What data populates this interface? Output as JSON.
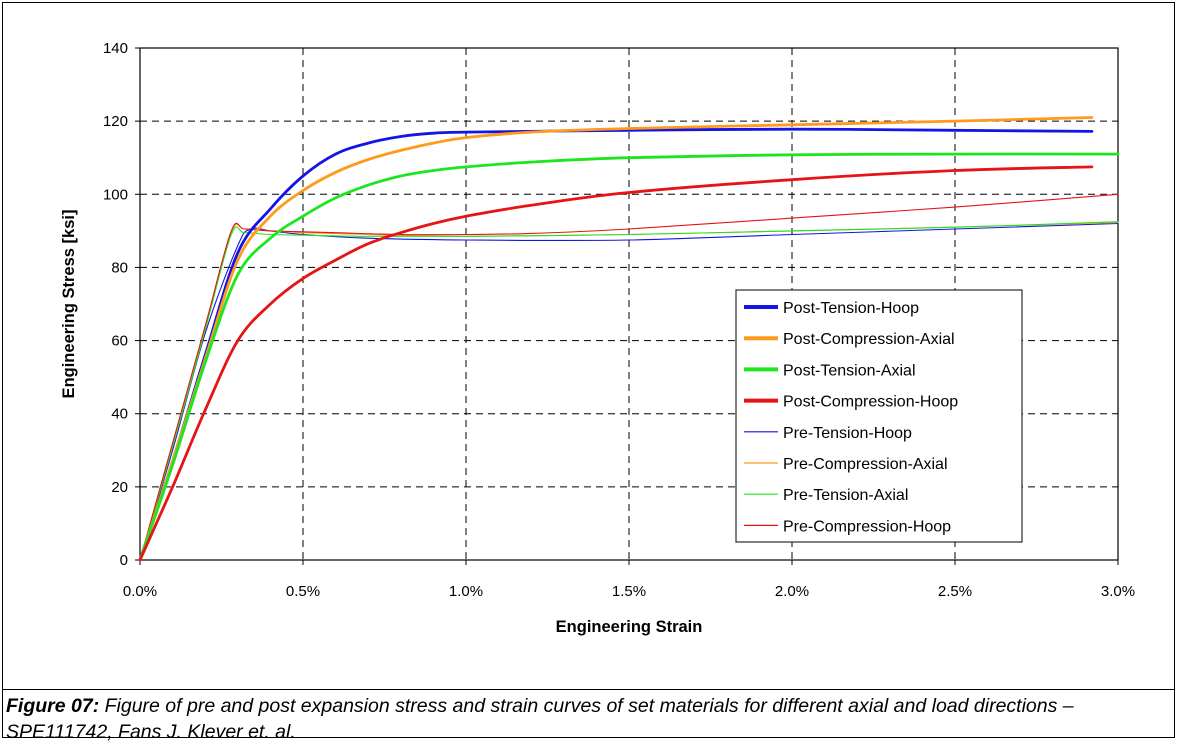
{
  "caption": {
    "label": "Figure 07:",
    "text": " Figure of pre and post expansion stress and strain curves of set materials for different axial and load directions – SPE111742, Fans J. Klever et. al."
  },
  "chart_data": {
    "type": "line",
    "xlabel": "Engineering Strain",
    "ylabel": "Engineering Stress  [ksi]",
    "x_unit": "%",
    "xlim": [
      0.0,
      3.0
    ],
    "ylim": [
      0,
      140
    ],
    "x_ticks": [
      "0.0%",
      "0.5%",
      "1.0%",
      "1.5%",
      "2.0%",
      "2.5%",
      "3.0%"
    ],
    "x_tick_values": [
      0.0,
      0.5,
      1.0,
      1.5,
      2.0,
      2.5,
      3.0
    ],
    "y_ticks": [
      "0",
      "20",
      "40",
      "60",
      "80",
      "100",
      "120",
      "140"
    ],
    "y_tick_values": [
      0,
      20,
      40,
      60,
      80,
      100,
      120,
      140
    ],
    "grid": "dashed",
    "legend_placement": "lower-right",
    "series": [
      {
        "name": "Post-Tension-Hoop",
        "color": "#1414e6",
        "weight": "bold",
        "points": [
          [
            0,
            0
          ],
          [
            0.1,
            27
          ],
          [
            0.2,
            56
          ],
          [
            0.3,
            84
          ],
          [
            0.4,
            96
          ],
          [
            0.5,
            105
          ],
          [
            0.6,
            111
          ],
          [
            0.7,
            114
          ],
          [
            0.8,
            115.8
          ],
          [
            0.9,
            116.7
          ],
          [
            1.0,
            117
          ],
          [
            1.5,
            117.5
          ],
          [
            2.0,
            117.8
          ],
          [
            2.5,
            117.5
          ],
          [
            2.92,
            117.2
          ]
        ]
      },
      {
        "name": "Post-Compression-Axial",
        "color": "#ff9a1a",
        "weight": "bold",
        "points": [
          [
            0,
            0
          ],
          [
            0.1,
            27
          ],
          [
            0.2,
            55
          ],
          [
            0.3,
            82
          ],
          [
            0.4,
            94
          ],
          [
            0.5,
            101
          ],
          [
            0.6,
            106
          ],
          [
            0.7,
            109.5
          ],
          [
            0.8,
            112
          ],
          [
            0.9,
            114
          ],
          [
            1.0,
            115.5
          ],
          [
            1.2,
            117
          ],
          [
            1.5,
            118
          ],
          [
            2.0,
            119
          ],
          [
            2.5,
            120
          ],
          [
            2.92,
            121
          ]
        ]
      },
      {
        "name": "Post-Tension-Axial",
        "color": "#1ee61e",
        "weight": "bold",
        "points": [
          [
            0,
            0
          ],
          [
            0.1,
            26
          ],
          [
            0.2,
            54
          ],
          [
            0.3,
            78
          ],
          [
            0.4,
            88
          ],
          [
            0.5,
            94
          ],
          [
            0.6,
            99
          ],
          [
            0.7,
            102.5
          ],
          [
            0.8,
            105
          ],
          [
            0.9,
            106.5
          ],
          [
            1.0,
            107.5
          ],
          [
            1.2,
            108.8
          ],
          [
            1.5,
            110
          ],
          [
            2.0,
            110.8
          ],
          [
            2.5,
            111
          ],
          [
            3.0,
            111
          ]
        ]
      },
      {
        "name": "Post-Compression-Hoop",
        "color": "#e61414",
        "weight": "bold",
        "points": [
          [
            0,
            0
          ],
          [
            0.1,
            20
          ],
          [
            0.2,
            41
          ],
          [
            0.3,
            60
          ],
          [
            0.4,
            70
          ],
          [
            0.5,
            77
          ],
          [
            0.6,
            82
          ],
          [
            0.7,
            86.5
          ],
          [
            0.8,
            89.5
          ],
          [
            0.9,
            92
          ],
          [
            1.0,
            94
          ],
          [
            1.2,
            97
          ],
          [
            1.5,
            100.5
          ],
          [
            2.0,
            104
          ],
          [
            2.5,
            106.5
          ],
          [
            2.92,
            107.5
          ]
        ]
      },
      {
        "name": "Pre-Tension-Hoop",
        "color": "#1414e6",
        "weight": "thin",
        "points": [
          [
            0,
            0
          ],
          [
            0.1,
            30
          ],
          [
            0.2,
            62
          ],
          [
            0.3,
            86
          ],
          [
            0.34,
            90.5
          ],
          [
            0.4,
            90
          ],
          [
            0.5,
            89
          ],
          [
            0.7,
            88
          ],
          [
            1.0,
            87.5
          ],
          [
            1.5,
            87.5
          ],
          [
            2.0,
            89
          ],
          [
            2.5,
            90.5
          ],
          [
            3.0,
            92
          ]
        ]
      },
      {
        "name": "Pre-Compression-Axial",
        "color": "#ff9a1a",
        "weight": "thin",
        "points": [
          [
            0,
            0
          ],
          [
            0.1,
            31
          ],
          [
            0.2,
            63
          ],
          [
            0.28,
            89.5
          ],
          [
            0.32,
            90.5
          ],
          [
            0.4,
            90
          ],
          [
            0.5,
            89.5
          ],
          [
            0.7,
            89
          ],
          [
            1.0,
            88.5
          ],
          [
            1.5,
            89
          ],
          [
            2.0,
            90
          ],
          [
            2.5,
            91
          ],
          [
            3.0,
            92.3
          ]
        ]
      },
      {
        "name": "Pre-Tension-Axial",
        "color": "#1ee61e",
        "weight": "thin",
        "points": [
          [
            0,
            0
          ],
          [
            0.1,
            31
          ],
          [
            0.2,
            63
          ],
          [
            0.28,
            89
          ],
          [
            0.32,
            89.5
          ],
          [
            0.4,
            89
          ],
          [
            0.5,
            88.8
          ],
          [
            0.7,
            88.5
          ],
          [
            1.0,
            88.5
          ],
          [
            1.5,
            89
          ],
          [
            2.0,
            90
          ],
          [
            2.5,
            91
          ],
          [
            3.0,
            92.5
          ]
        ]
      },
      {
        "name": "Pre-Compression-Hoop",
        "color": "#e61414",
        "weight": "thin",
        "points": [
          [
            0,
            0
          ],
          [
            0.1,
            32
          ],
          [
            0.2,
            64
          ],
          [
            0.28,
            90
          ],
          [
            0.32,
            90.5
          ],
          [
            0.4,
            90
          ],
          [
            0.6,
            89.5
          ],
          [
            0.8,
            89
          ],
          [
            1.0,
            89
          ],
          [
            1.2,
            89.3
          ],
          [
            1.5,
            90.5
          ],
          [
            2.0,
            93.5
          ],
          [
            2.5,
            96.5
          ],
          [
            3.0,
            100
          ]
        ]
      }
    ]
  }
}
